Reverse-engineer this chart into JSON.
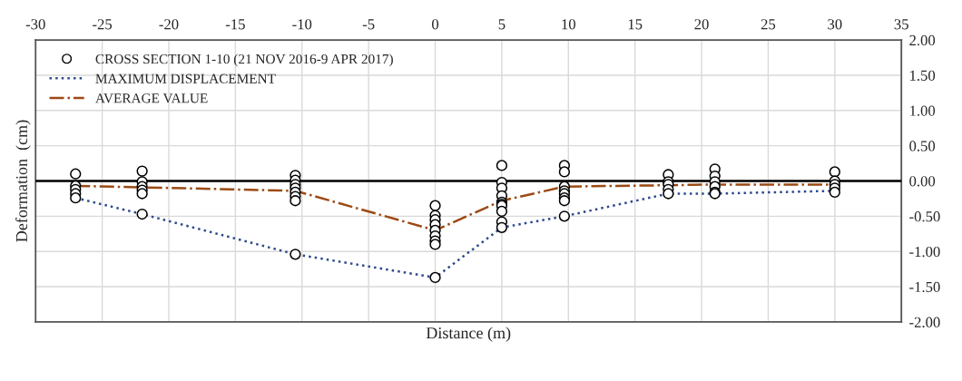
{
  "chart_data": {
    "type": "scatter",
    "xlabel": "Distance (m)",
    "ylabel": "Deformation  (cm)",
    "xlim": [
      -30,
      35
    ],
    "xticks": [
      -30,
      -25,
      -20,
      -15,
      -10,
      -5,
      0,
      5,
      10,
      15,
      20,
      25,
      30,
      35
    ],
    "ylim": [
      -2,
      2
    ],
    "yticks": [
      {
        "value": -2,
        "label": "-2.00"
      },
      {
        "value": -1.5,
        "label": "-1.50"
      },
      {
        "value": -1,
        "label": "-1.00"
      },
      {
        "value": -0.5,
        "label": "-0.50"
      },
      {
        "value": 0,
        "label": "0.00"
      },
      {
        "value": 0.5,
        "label": "0.50"
      },
      {
        "value": 1,
        "label": "1.00"
      },
      {
        "value": 1.5,
        "label": "1.50"
      },
      {
        "value": 2,
        "label": "2.00"
      }
    ],
    "grid": true,
    "legend": "top left",
    "ref_lines": [
      {
        "axis": "y",
        "value": 0,
        "color": "#000000"
      }
    ],
    "series": [
      {
        "name": "CROSS SECTION 1-10 (21 NOV 2016-9 APR 2017)",
        "marker": "circle",
        "color": "#000000",
        "x": [
          -27,
          -27,
          -27,
          -27,
          -27,
          -22,
          -22,
          -22,
          -22,
          -22,
          -22,
          -10.5,
          -10.5,
          -10.5,
          -10.5,
          -10.5,
          -10.5,
          -10.5,
          -10.5,
          0,
          0,
          0,
          0,
          0,
          0,
          0,
          0,
          0,
          5,
          5,
          5,
          5,
          5,
          5,
          5,
          5,
          5,
          5,
          9.7,
          9.7,
          9.7,
          9.7,
          9.7,
          9.7,
          9.7,
          9.7,
          17.5,
          17.5,
          17.5,
          17.5,
          17.5,
          21,
          21,
          21,
          21,
          21,
          21,
          30,
          30,
          30,
          30,
          30
        ],
        "values": [
          0.1,
          -0.07,
          -0.12,
          -0.18,
          -0.24,
          0.14,
          -0.01,
          -0.08,
          -0.13,
          -0.18,
          -0.47,
          0.08,
          0.01,
          -0.05,
          -0.1,
          -0.16,
          -0.22,
          -0.28,
          -1.04,
          -0.35,
          -0.49,
          -0.55,
          -0.62,
          -0.7,
          -0.78,
          -0.85,
          -0.9,
          -1.37,
          0.22,
          -0.02,
          -0.1,
          -0.21,
          -0.3,
          -0.33,
          -0.35,
          -0.43,
          -0.58,
          -0.66,
          0.22,
          0.13,
          -0.08,
          -0.14,
          -0.18,
          -0.24,
          -0.28,
          -0.5,
          0.09,
          -0.01,
          -0.05,
          -0.12,
          -0.18,
          0.17,
          0.07,
          -0.01,
          -0.08,
          -0.16,
          -0.18,
          0.13,
          0.0,
          -0.05,
          -0.1,
          -0.16
        ]
      },
      {
        "name": "MAXIMUM DISPLACEMENT",
        "type": "line",
        "marker": "none",
        "line_style": "dotted",
        "color": "#2e4a8c",
        "x": [
          -27,
          -22,
          -10.5,
          0,
          5,
          9.7,
          17.5,
          21,
          30
        ],
        "values": [
          -0.24,
          -0.47,
          -1.04,
          -1.37,
          -0.66,
          -0.5,
          -0.18,
          -0.18,
          -0.14
        ]
      },
      {
        "name": "AVERAGE VALUE",
        "type": "line",
        "marker": "none",
        "line_style": "dashdot",
        "color": "#9c4a14",
        "x": [
          -27,
          -22,
          -10.5,
          0,
          5,
          9.7,
          17.5,
          21,
          30
        ],
        "values": [
          -0.07,
          -0.09,
          -0.14,
          -0.7,
          -0.28,
          -0.08,
          -0.06,
          -0.05,
          -0.05
        ]
      }
    ]
  }
}
